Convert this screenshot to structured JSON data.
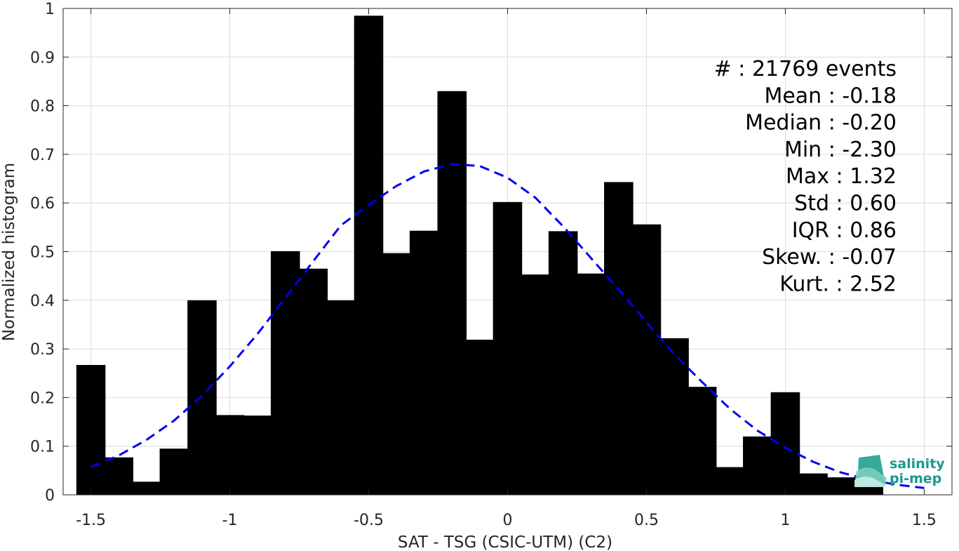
{
  "chart_data": {
    "type": "bar",
    "xlabel": "SAT - TSG (CSIC-UTM) (C2)",
    "ylabel": "Normalized histogram",
    "xlim": [
      -1.6,
      1.6
    ],
    "ylim": [
      0,
      1
    ],
    "xticks": [
      -1.5,
      -1,
      -0.5,
      0,
      0.5,
      1,
      1.5
    ],
    "xtick_labels": [
      "-1.5",
      "-1",
      "-0.5",
      "0",
      "0.5",
      "1",
      "1.5"
    ],
    "yticks": [
      0,
      0.1,
      0.2,
      0.3,
      0.4,
      0.5,
      0.6,
      0.7,
      0.8,
      0.9,
      1
    ],
    "ytick_labels": [
      "0",
      "0.1",
      "0.2",
      "0.3",
      "0.4",
      "0.5",
      "0.6",
      "0.7",
      "0.8",
      "0.9",
      "1"
    ],
    "grid": true,
    "bar_color": "#000000",
    "bar_width": 0.105,
    "bars": {
      "x": [
        -1.5,
        -1.4,
        -1.3,
        -1.2,
        -1.1,
        -1.0,
        -0.9,
        -0.8,
        -0.7,
        -0.6,
        -0.5,
        -0.4,
        -0.3,
        -0.2,
        -0.1,
        0.0,
        0.1,
        0.2,
        0.3,
        0.4,
        0.5,
        0.6,
        0.7,
        0.8,
        0.9,
        1.0,
        1.1,
        1.2,
        1.3
      ],
      "values": [
        0.267,
        0.077,
        0.027,
        0.095,
        0.4,
        0.164,
        0.163,
        0.501,
        0.465,
        0.4,
        0.985,
        0.497,
        0.543,
        0.83,
        0.319,
        0.602,
        0.453,
        0.542,
        0.455,
        0.643,
        0.556,
        0.322,
        0.222,
        0.057,
        0.12,
        0.211,
        0.044,
        0.036,
        0.022
      ]
    },
    "fit_curve": {
      "style": "dashed",
      "color": "#0000ee",
      "x": [
        -1.5,
        -1.4,
        -1.3,
        -1.2,
        -1.1,
        -1.0,
        -0.9,
        -0.8,
        -0.7,
        -0.6,
        -0.5,
        -0.4,
        -0.3,
        -0.2,
        -0.1,
        0.0,
        0.1,
        0.2,
        0.3,
        0.4,
        0.5,
        0.6,
        0.7,
        0.8,
        0.9,
        1.0,
        1.1,
        1.2,
        1.3,
        1.4,
        1.5
      ],
      "y": [
        0.057,
        0.081,
        0.113,
        0.153,
        0.204,
        0.264,
        0.331,
        0.405,
        0.48,
        0.554,
        0.596,
        0.635,
        0.665,
        0.68,
        0.676,
        0.652,
        0.611,
        0.552,
        0.487,
        0.422,
        0.355,
        0.289,
        0.232,
        0.177,
        0.132,
        0.097,
        0.068,
        0.046,
        0.031,
        0.021,
        0.014
      ]
    },
    "stats": [
      "#  : 21769 events",
      "Mean : -0.18",
      "Median : -0.20",
      "Min : -2.30",
      "Max : 1.32",
      "Std : 0.60",
      "IQR : 0.86",
      "Skew. : -0.07",
      "Kurt. : 2.52"
    ]
  },
  "logo": {
    "line1": "salinity",
    "line2": "pi-mep",
    "color": "#1a9a8a"
  }
}
